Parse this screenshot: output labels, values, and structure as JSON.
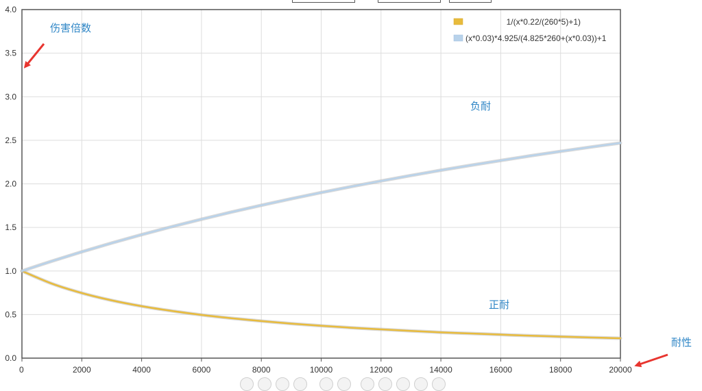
{
  "chart_data": {
    "type": "line",
    "title": "",
    "x": [
      0,
      1000,
      2000,
      3000,
      4000,
      5000,
      6000,
      7000,
      8000,
      9000,
      10000,
      11000,
      12000,
      13000,
      14000,
      15000,
      16000,
      17000,
      18000,
      19000,
      20000
    ],
    "series": [
      {
        "name": "1/(x*0.22/(260*5)+1)",
        "color": "#e8bb3c",
        "values": [
          1.0,
          0.855,
          0.747,
          0.663,
          0.596,
          0.542,
          0.496,
          0.458,
          0.425,
          0.396,
          0.371,
          0.349,
          0.33,
          0.312,
          0.296,
          0.283,
          0.27,
          0.257,
          0.247,
          0.237,
          0.228
        ]
      },
      {
        "name": "(x*0.03)*4.925/(4.825*260+(x*0.03))+1",
        "color": "#b8d2ea",
        "values": [
          1.0,
          1.113,
          1.22,
          1.321,
          1.417,
          1.508,
          1.594,
          1.676,
          1.754,
          1.829,
          1.9,
          1.968,
          2.033,
          2.096,
          2.156,
          2.213,
          2.268,
          2.322,
          2.373,
          2.422,
          2.469
        ]
      }
    ],
    "xlim": [
      0,
      20000
    ],
    "ylim": [
      0,
      4
    ],
    "xticks": [
      "0",
      "2000",
      "4000",
      "6000",
      "8000",
      "10000",
      "12000",
      "14000",
      "16000",
      "18000",
      "20000"
    ],
    "yticks": [
      "0.0",
      "0.5",
      "1.0",
      "1.5",
      "2.0",
      "2.5",
      "3.0",
      "3.5",
      "4.0"
    ],
    "grid": true,
    "legend_position": "top-right",
    "annotations": {
      "y_axis_note": "伤害倍数",
      "x_axis_note": "耐性",
      "upper_curve_note": "负耐",
      "lower_curve_note": "正耐"
    },
    "arrow_color": "#e8352f"
  }
}
